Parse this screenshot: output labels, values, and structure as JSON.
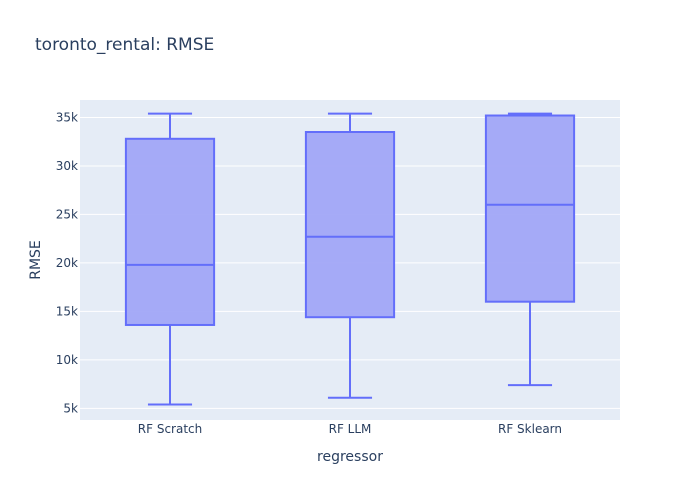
{
  "chart_data": {
    "type": "box",
    "title": "toronto_rental: RMSE",
    "xlabel": "regressor",
    "ylabel": "RMSE",
    "ylim": [
      3800,
      36800
    ],
    "yticks": [
      5000,
      10000,
      15000,
      20000,
      25000,
      30000,
      35000
    ],
    "ytick_labels": [
      "5k",
      "10k",
      "15k",
      "20k",
      "25k",
      "30k",
      "35k"
    ],
    "grid": true,
    "categories": [
      "RF Scratch",
      "RF LLM",
      "RF Sklearn"
    ],
    "boxes": [
      {
        "category": "RF Scratch",
        "min": 5400,
        "q1": 13600,
        "median": 19800,
        "q3": 32800,
        "max": 35400
      },
      {
        "category": "RF LLM",
        "min": 6100,
        "q1": 14400,
        "median": 22700,
        "q3": 33500,
        "max": 35400
      },
      {
        "category": "RF Sklearn",
        "min": 7400,
        "q1": 16000,
        "median": 26000,
        "q3": 35200,
        "max": 35400
      }
    ],
    "colors": {
      "box_line": "#636efa",
      "box_fill": "#a1a6f7",
      "plot_bg": "#e5ecf6",
      "grid": "#ffffff",
      "text": "#2a3f5f"
    }
  }
}
